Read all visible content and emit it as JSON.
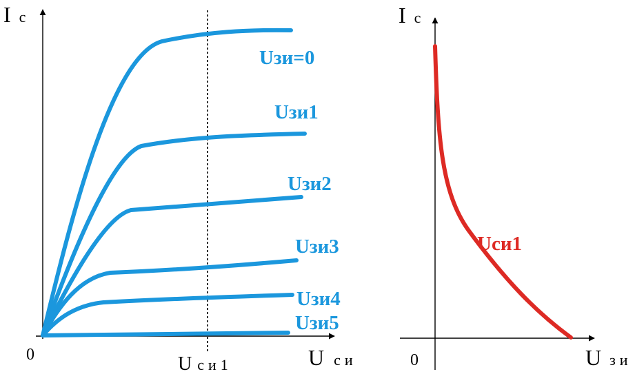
{
  "colors": {
    "output_curves": "#1b97dd",
    "transfer_curve": "#dd2a24",
    "axis": "#000000"
  },
  "left_graph": {
    "y_axis": {
      "main": "I",
      "sub": "с"
    },
    "origin": "0",
    "x_axis": {
      "main": "U",
      "sub": "си"
    },
    "marker": {
      "main": "U",
      "sub": "си1"
    },
    "curves": [
      {
        "label": "Uзи=0"
      },
      {
        "label": "Uзи1"
      },
      {
        "label": "Uзи2"
      },
      {
        "label": "Uзи3"
      },
      {
        "label": "Uзи4"
      },
      {
        "label": "Uзи5"
      }
    ]
  },
  "right_graph": {
    "y_axis": {
      "main": "I",
      "sub": "с"
    },
    "origin": "0",
    "x_axis": {
      "main": "U",
      "sub": "зи"
    },
    "curve": {
      "label": "Uси1"
    }
  }
}
